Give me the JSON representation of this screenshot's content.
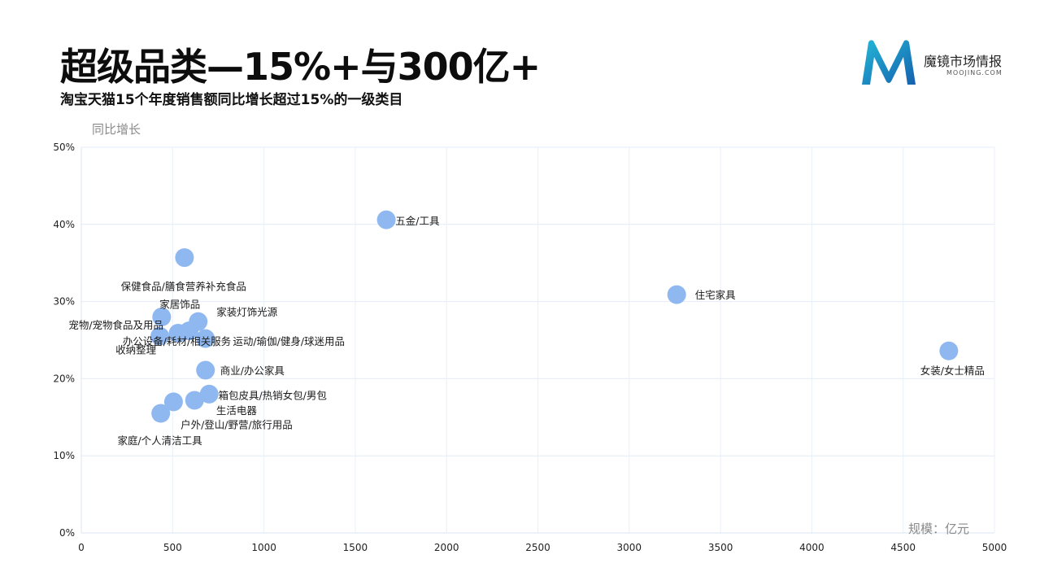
{
  "header": {
    "title": "超级品类—15%+与300亿+",
    "subtitle": "淘宝天猫15个年度销售额同比增长超过15%的一级类目"
  },
  "logo": {
    "name_cn": "魔镜市场情报",
    "name_en": "MOOJING.COM",
    "colors": [
      "#1aa0c8",
      "#1565b0"
    ]
  },
  "chart_data": {
    "type": "scatter",
    "ylabel": "同比增长",
    "xlabel": "规模：亿元",
    "xlim": [
      0,
      5000
    ],
    "ylim": [
      0,
      50
    ],
    "xticks": [
      0,
      500,
      1000,
      1500,
      2000,
      2500,
      3000,
      3500,
      4000,
      4500,
      5000
    ],
    "yticks": [
      0,
      10,
      20,
      30,
      40,
      50
    ],
    "ytick_suffix": "%",
    "grid": true,
    "point_color": "#8fb8f0",
    "points": [
      {
        "label": "五金/工具",
        "x": 1670,
        "y": 40.6,
        "lx": 1720,
        "ly": 40.4,
        "anchor": "start"
      },
      {
        "label": "住宅家具",
        "x": 3260,
        "y": 30.9,
        "lx": 3360,
        "ly": 30.8,
        "anchor": "start"
      },
      {
        "label": "女装/女士精品",
        "x": 4750,
        "y": 23.6,
        "lx": 4770,
        "ly": 21.0,
        "anchor": "middle"
      },
      {
        "label": "保健食品/膳食营养补充食品",
        "x": 565,
        "y": 35.7,
        "lx": 560,
        "ly": 31.9,
        "anchor": "middle"
      },
      {
        "label": "家居饰品",
        "x": 440,
        "y": 28.0,
        "lx": 540,
        "ly": 29.6,
        "anchor": "middle"
      },
      {
        "label": "家装灯饰光源",
        "x": 640,
        "y": 27.4,
        "lx": 740,
        "ly": 28.6,
        "anchor": "start"
      },
      {
        "label": "宠物/宠物食品及用品",
        "x": 530,
        "y": 25.9,
        "lx": 450,
        "ly": 26.9,
        "anchor": "end"
      },
      {
        "label": "办公设备/耗材/相关服务",
        "x": 590,
        "y": 26.2,
        "lx": 820,
        "ly": 24.8,
        "anchor": "end"
      },
      {
        "label": "运动/瑜伽/健身/球迷用品",
        "x": 680,
        "y": 25.2,
        "lx": 830,
        "ly": 24.8,
        "anchor": "start"
      },
      {
        "label": "收纳整理",
        "x": 430,
        "y": 25.5,
        "lx": 410,
        "ly": 23.7,
        "anchor": "end"
      },
      {
        "label": "商业/办公家具",
        "x": 680,
        "y": 21.1,
        "lx": 760,
        "ly": 21.0,
        "anchor": "start"
      },
      {
        "label": "箱包皮具/热销女包/男包",
        "x": 700,
        "y": 18.0,
        "lx": 750,
        "ly": 17.8,
        "anchor": "start"
      },
      {
        "label": "生活电器",
        "x": 620,
        "y": 17.2,
        "lx": 850,
        "ly": 15.8,
        "anchor": "middle"
      },
      {
        "label": "户外/登山/野营/旅行用品",
        "x": 505,
        "y": 17.0,
        "lx": 850,
        "ly": 14.0,
        "anchor": "middle"
      },
      {
        "label": "家庭/个人清洁工具",
        "x": 435,
        "y": 15.5,
        "lx": 430,
        "ly": 11.9,
        "anchor": "middle"
      }
    ]
  }
}
